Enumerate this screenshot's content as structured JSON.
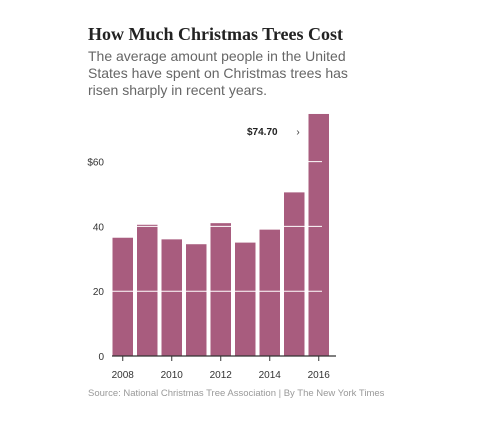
{
  "header": {
    "title": "How Much Christmas Trees Cost",
    "subtitle": "The average amount people in the United States have spent on Christmas trees has risen sharply in recent years."
  },
  "footer": {
    "source": "Source: National Christmas Tree Association | By The New York Times"
  },
  "colors": {
    "bar": "#a85c7e",
    "gridline": "#ffffff",
    "axis": "#333333"
  },
  "chart_data": {
    "type": "bar",
    "title": "How Much Christmas Trees Cost",
    "subtitle": "The average amount people in the United States have spent on Christmas trees has risen sharply in recent years.",
    "xlabel": "",
    "ylabel": "",
    "categories": [
      "2008",
      "2009",
      "2010",
      "2011",
      "2012",
      "2013",
      "2014",
      "2015",
      "2016"
    ],
    "values": [
      36.5,
      40.5,
      36,
      34.5,
      41,
      35,
      39,
      50.5,
      74.7
    ],
    "ylim": [
      0,
      75
    ],
    "yticks": [
      {
        "value": 0,
        "label": "0"
      },
      {
        "value": 20,
        "label": "20"
      },
      {
        "value": 40,
        "label": "40"
      },
      {
        "value": 60,
        "label": "$60"
      }
    ],
    "xtick_labels": [
      "2008",
      "2010",
      "2012",
      "2014",
      "2016"
    ],
    "grid": true,
    "annotation": {
      "category": "2016",
      "label": "$74.70",
      "pointer": "›"
    }
  }
}
